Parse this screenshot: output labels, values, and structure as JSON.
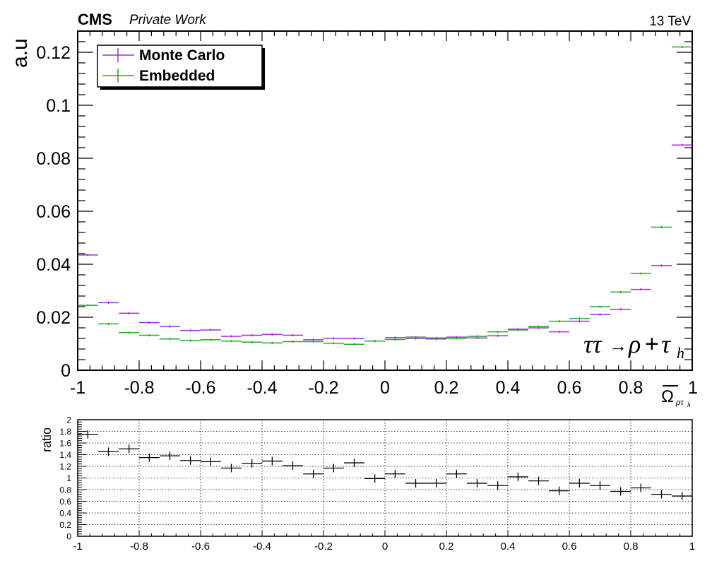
{
  "header": {
    "experiment": "CMS",
    "tag": "Private Work",
    "energy": "13 TeV"
  },
  "chart_data": [
    {
      "type": "line",
      "ylabel": "a.u",
      "xlabel": "Ω̅ρτh",
      "xlim": [
        -1,
        1
      ],
      "ylim": [
        0,
        0.128
      ],
      "x_ticks": [
        "-1",
        "-0.8",
        "-0.6",
        "-0.4",
        "-0.2",
        "0",
        "0.2",
        "0.4",
        "0.6",
        "0.8",
        "1"
      ],
      "y_ticks": [
        "0",
        "0.02",
        "0.04",
        "0.06",
        "0.08",
        "0.1",
        "0.12"
      ],
      "annotation": "ττ → ρ+τh",
      "legend_position": "top-left",
      "bin_centers": [
        -0.967,
        -0.9,
        -0.833,
        -0.767,
        -0.7,
        -0.633,
        -0.567,
        -0.5,
        -0.433,
        -0.367,
        -0.3,
        -0.233,
        -0.167,
        -0.1,
        -0.033,
        0.033,
        0.1,
        0.167,
        0.233,
        0.3,
        0.367,
        0.433,
        0.5,
        0.567,
        0.633,
        0.7,
        0.767,
        0.833,
        0.9,
        0.967
      ],
      "series": [
        {
          "name": "Monte Carlo",
          "color": "#9b30d0",
          "values": [
            0.0435,
            0.0255,
            0.0215,
            0.018,
            0.0165,
            0.015,
            0.0152,
            0.0128,
            0.0132,
            0.0135,
            0.0132,
            0.0115,
            0.012,
            0.012,
            0.011,
            0.0123,
            0.012,
            0.0118,
            0.0125,
            0.0122,
            0.013,
            0.0155,
            0.016,
            0.0145,
            0.0185,
            0.021,
            0.023,
            0.0305,
            0.0395,
            0.085
          ]
        },
        {
          "name": "Embedded",
          "color": "#22a82a",
          "values": [
            0.0245,
            0.0175,
            0.0142,
            0.0132,
            0.0118,
            0.0112,
            0.0115,
            0.011,
            0.0106,
            0.0103,
            0.0108,
            0.0108,
            0.0102,
            0.0098,
            0.011,
            0.0116,
            0.0125,
            0.0122,
            0.012,
            0.0128,
            0.0145,
            0.0152,
            0.0165,
            0.0185,
            0.0195,
            0.024,
            0.0295,
            0.0365,
            0.054,
            0.122
          ]
        }
      ]
    },
    {
      "type": "line",
      "ylabel": "ratio",
      "xlim": [
        -1,
        1
      ],
      "ylim": [
        0,
        2
      ],
      "grid": true,
      "x_ticks": [
        "-1",
        "-0.8",
        "-0.6",
        "-0.4",
        "-0.2",
        "0",
        "0.2",
        "0.4",
        "0.6",
        "0.8",
        "1"
      ],
      "y_ticks": [
        "0",
        "0.2",
        "0.4",
        "0.6",
        "0.8",
        "1",
        "1.2",
        "1.4",
        "1.6",
        "1.8",
        "2"
      ],
      "series": [
        {
          "color": "#000000",
          "values": [
            1.75,
            1.45,
            1.5,
            1.35,
            1.38,
            1.3,
            1.28,
            1.17,
            1.25,
            1.29,
            1.21,
            1.07,
            1.17,
            1.26,
            0.99,
            1.07,
            0.91,
            0.91,
            1.07,
            0.91,
            0.87,
            1.02,
            0.95,
            0.78,
            0.91,
            0.87,
            0.77,
            0.83,
            0.72,
            0.69
          ]
        }
      ]
    }
  ]
}
